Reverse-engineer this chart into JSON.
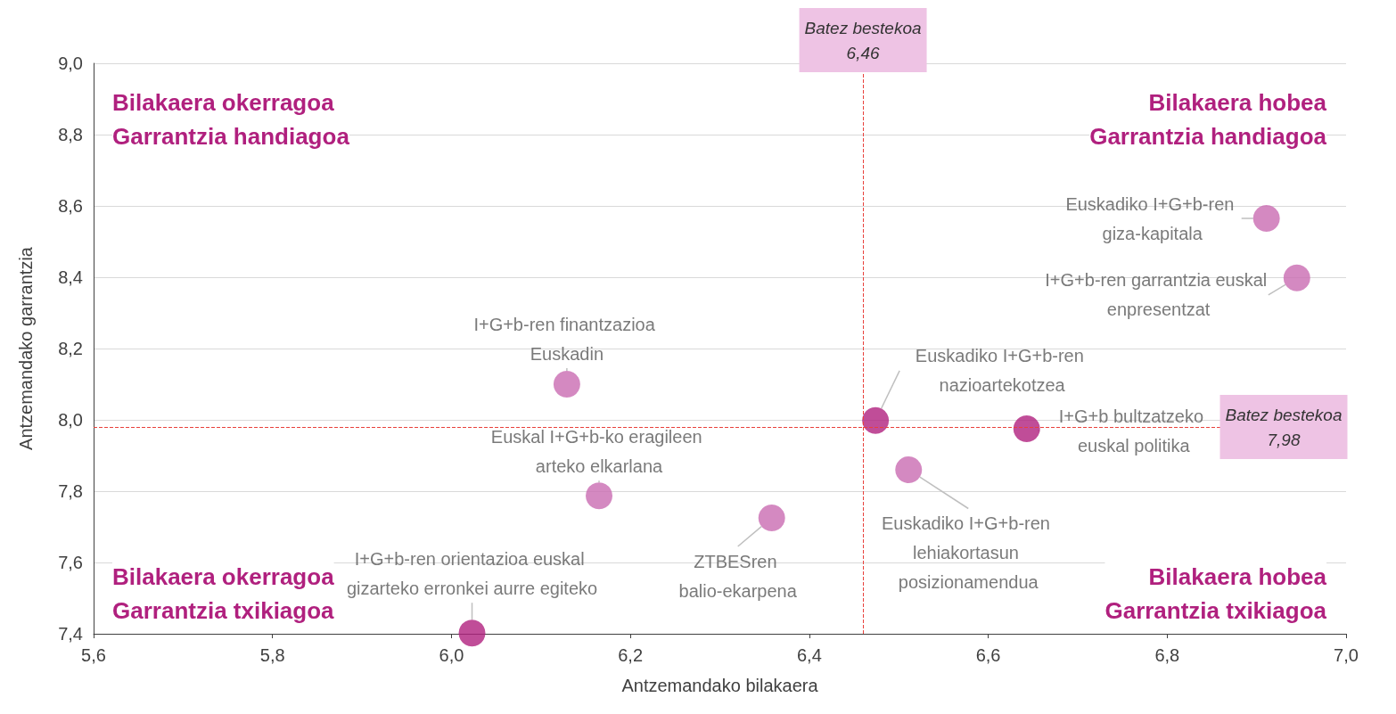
{
  "chart_data": {
    "type": "scatter",
    "xlabel": "Antzemandako bilakaera",
    "ylabel": "Antzemandako garrantzia",
    "x": [
      6.911,
      6.945,
      6.129,
      6.474,
      6.643,
      6.511,
      6.165,
      6.358,
      6.023
    ],
    "series": [
      {
        "colors": [
          "#c96cb1",
          "#c96cb1",
          "#c96cb1",
          "#b0207e",
          "#b0207e",
          "#c96cb1",
          "#c96cb1",
          "#c96cb1",
          "#b0207e"
        ],
        "values": [
          8.565,
          8.398,
          8.1,
          7.998,
          7.975,
          7.86,
          7.787,
          7.725,
          7.402
        ]
      }
    ],
    "xlim": [
      5.6,
      7.0
    ],
    "ylim": [
      7.4,
      9.0
    ],
    "xticks": [
      {
        "value": 5.6,
        "label": "5,6"
      },
      {
        "value": 5.8,
        "label": "5,8"
      },
      {
        "value": 6.0,
        "label": "6,0"
      },
      {
        "value": 6.2,
        "label": "6,2"
      },
      {
        "value": 6.4,
        "label": "6,4"
      },
      {
        "value": 6.6,
        "label": "6,6"
      },
      {
        "value": 6.8,
        "label": "6,8"
      },
      {
        "value": 7.0,
        "label": "7,0"
      }
    ],
    "yticks": [
      {
        "value": 7.4,
        "label": "7,4"
      },
      {
        "value": 7.6,
        "label": "7,6"
      },
      {
        "value": 7.8,
        "label": "7,8"
      },
      {
        "value": 8.0,
        "label": "8,0"
      },
      {
        "value": 8.2,
        "label": "8,2"
      },
      {
        "value": 8.4,
        "label": "8,4"
      },
      {
        "value": 8.6,
        "label": "8,6"
      },
      {
        "value": 8.8,
        "label": "8,8"
      },
      {
        "value": 9.0,
        "label": "9,0"
      }
    ],
    "ref_lines": [
      {
        "axis": "x",
        "value": 6.46,
        "label": "Batez bestekoa 6,46",
        "color": "#e8413c",
        "line_style": "dashed"
      },
      {
        "axis": "y",
        "value": 7.98,
        "label": "Batez bestekoa 7,98",
        "color": "#e8413c",
        "line_style": "dashed"
      }
    ],
    "annotations": [
      {
        "text": "Euskadiko I+G+b-ren giza-kapitala",
        "x": 6.911,
        "y": 8.565
      },
      {
        "text": "I+G+b-ren garrantzia euskal enpresentzat",
        "x": 6.945,
        "y": 8.398
      },
      {
        "text": "I+G+b-ren finantzazioa Euskadin",
        "x": 6.129,
        "y": 8.1
      },
      {
        "text": "Euskadiko I+G+b-ren nazioartekotzea",
        "x": 6.474,
        "y": 7.998
      },
      {
        "text": "I+G+b bultzatzeko euskal politika",
        "x": 6.643,
        "y": 7.975
      },
      {
        "text": "Euskadiko I+G+b-ren lehiakortasun posizionamendua",
        "x": 6.511,
        "y": 7.86
      },
      {
        "text": "Euskal I+G+b-ko eragileen arteko elkarlana",
        "x": 6.165,
        "y": 7.787
      },
      {
        "text": "ZTBESren balio-ekarpena",
        "x": 6.358,
        "y": 7.725
      },
      {
        "text": "I+G+b-ren orientazioa euskal gizarteko erronkei aurre egiteko",
        "x": 6.023,
        "y": 7.402
      },
      "Bilakaera okerragoa Garrantzia handiagoa",
      "Bilakaera hobea Garrantzia handiagoa",
      "Bilakaera okerragoa Garrantzia txikiagoa",
      "Bilakaera hobea Garrantzia txikiagoa"
    ],
    "grid": "y",
    "marker": "circle"
  }
}
